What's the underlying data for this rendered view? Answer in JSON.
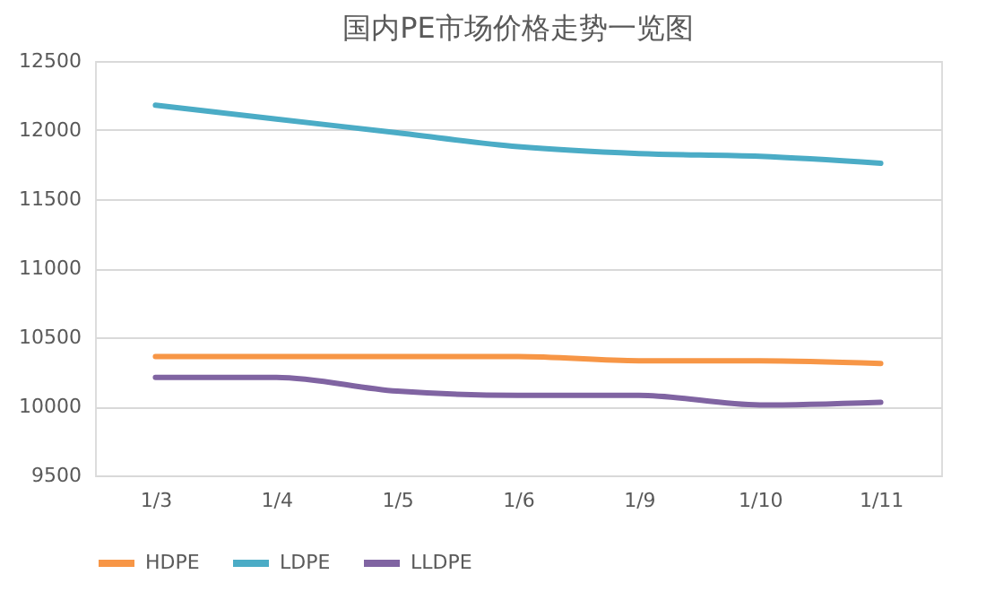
{
  "chart_data": {
    "type": "line",
    "title": "国内PE市场价格走势一览图",
    "categories": [
      "1/3",
      "1/4",
      "1/5",
      "1/6",
      "1/9",
      "1/10",
      "1/11"
    ],
    "series": [
      {
        "name": "HDPE",
        "color": "#f79646",
        "values": [
          10360,
          10360,
          10360,
          10360,
          10330,
          10330,
          10310
        ]
      },
      {
        "name": "LDPE",
        "color": "#4bacc6",
        "values": [
          12180,
          12080,
          11980,
          11880,
          11830,
          11810,
          11760
        ]
      },
      {
        "name": "LLDPE",
        "color": "#8064a2",
        "values": [
          10210,
          10210,
          10110,
          10080,
          10080,
          10010,
          10030
        ]
      }
    ],
    "ylim": [
      9500,
      12500
    ],
    "yticks": [
      9500,
      10000,
      10500,
      11000,
      11500,
      12000,
      12500
    ],
    "grid": "y",
    "legend": "bottom",
    "marker": "none",
    "line_style": "solid"
  }
}
